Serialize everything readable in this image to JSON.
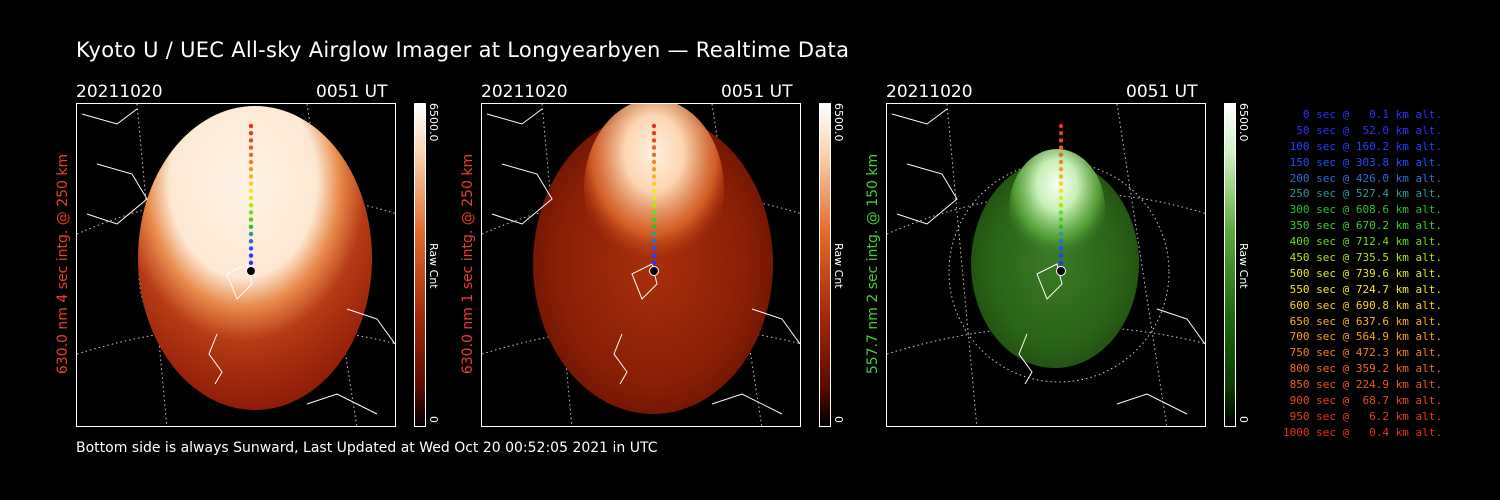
{
  "title": "Kyoto U / UEC All-sky Airglow Imager at Longyearbyen — Realtime Data",
  "footer": "Bottom side is always Sunward, Last Updated at Wed Oct 20 00:52:05 2021 in UTC",
  "panels": [
    {
      "date": "20211020",
      "time": "0051 UT",
      "ylabel": "630.0 nm 4 sec intg. @ 250 km",
      "label_color": "#e8402a",
      "cbar_max": "6500.0",
      "cbar_min": "0",
      "cbar_unit": "Raw Cnt",
      "colormap": "red"
    },
    {
      "date": "20211020",
      "time": "0051 UT",
      "ylabel": "630.0 nm 1 sec intg. @ 250 km",
      "label_color": "#e8402a",
      "cbar_max": "6500.0",
      "cbar_min": "0",
      "cbar_unit": "Raw Cnt",
      "colormap": "red"
    },
    {
      "date": "20211020",
      "time": "0051 UT",
      "ylabel": "557.7 nm 2 sec intg. @ 150 km",
      "label_color": "#3fd23a",
      "cbar_max": "6500.0",
      "cbar_min": "0",
      "cbar_unit": "Raw Cnt",
      "colormap": "green"
    }
  ],
  "legend": [
    {
      "text": "0 sec @   0.1 km alt.",
      "color": "#3030ff"
    },
    {
      "text": "50 sec @  52.0 km alt.",
      "color": "#3030ff"
    },
    {
      "text": "100 sec @ 160.2 km alt.",
      "color": "#2040ff"
    },
    {
      "text": "150 sec @ 303.8 km alt.",
      "color": "#2050ff"
    },
    {
      "text": "200 sec @ 426.0 km alt.",
      "color": "#2a6fd0"
    },
    {
      "text": "250 sec @ 527.4 km alt.",
      "color": "#2a9a9a"
    },
    {
      "text": "300 sec @ 608.6 km alt.",
      "color": "#28c030"
    },
    {
      "text": "350 sec @ 670.2 km alt.",
      "color": "#40d020"
    },
    {
      "text": "400 sec @ 712.4 km alt.",
      "color": "#70dc10"
    },
    {
      "text": "450 sec @ 735.5 km alt.",
      "color": "#a8e810"
    },
    {
      "text": "500 sec @ 739.6 km alt.",
      "color": "#d8ec20"
    },
    {
      "text": "550 sec @ 724.7 km alt.",
      "color": "#f0e820"
    },
    {
      "text": "600 sec @ 690.8 km alt.",
      "color": "#f8d020"
    },
    {
      "text": "650 sec @ 637.6 km alt.",
      "color": "#f8b020"
    },
    {
      "text": "700 sec @ 564.9 km alt.",
      "color": "#f89a20"
    },
    {
      "text": "750 sec @ 472.3 km alt.",
      "color": "#f08020"
    },
    {
      "text": "800 sec @ 359.2 km alt.",
      "color": "#ec6a20"
    },
    {
      "text": "850 sec @ 224.9 km alt.",
      "color": "#ea5a20"
    },
    {
      "text": "900 sec @  68.7 km alt.",
      "color": "#e84a20"
    },
    {
      "text": "950 sec @   6.2 km alt.",
      "color": "#e83a20"
    },
    {
      "text": "1000 sec @   0.4 km alt.",
      "color": "#e83020"
    }
  ]
}
